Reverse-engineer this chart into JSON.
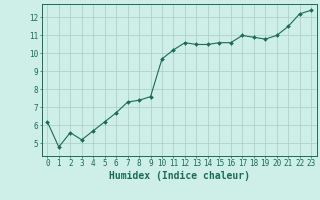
{
  "x": [
    0,
    1,
    2,
    3,
    4,
    5,
    6,
    7,
    8,
    9,
    10,
    11,
    12,
    13,
    14,
    15,
    16,
    17,
    18,
    19,
    20,
    21,
    22,
    23
  ],
  "y": [
    6.2,
    4.8,
    5.6,
    5.2,
    5.7,
    6.2,
    6.7,
    7.3,
    7.4,
    7.6,
    9.7,
    10.2,
    10.6,
    10.5,
    10.5,
    10.6,
    10.6,
    11.0,
    10.9,
    10.8,
    11.0,
    11.5,
    12.2,
    12.4
  ],
  "line_color": "#1a6b5a",
  "marker": "D",
  "marker_size": 2.0,
  "bg_color": "#ceeee8",
  "grid_color": "#aaccc4",
  "xlabel": "Humidex (Indice chaleur)",
  "xlim": [
    -0.5,
    23.5
  ],
  "ylim": [
    4.3,
    12.75
  ],
  "yticks": [
    5,
    6,
    7,
    8,
    9,
    10,
    11,
    12
  ],
  "xticks": [
    0,
    1,
    2,
    3,
    4,
    5,
    6,
    7,
    8,
    9,
    10,
    11,
    12,
    13,
    14,
    15,
    16,
    17,
    18,
    19,
    20,
    21,
    22,
    23
  ],
  "tick_color": "#1a6b5a",
  "label_color": "#1a6b5a",
  "font_family": "monospace",
  "xlabel_fontsize": 7.0,
  "tick_fontsize": 5.5,
  "linewidth": 0.8
}
